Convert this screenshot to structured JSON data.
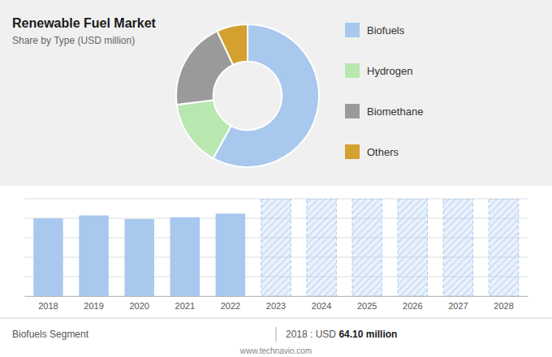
{
  "chart_data": [
    {
      "type": "pie",
      "title": "Renewable Fuel Market",
      "subtitle": "Share by Type (USD million)",
      "categories": [
        "Biofuels",
        "Hydrogen",
        "Biomethane",
        "Others"
      ],
      "values": [
        58,
        15,
        20,
        7
      ],
      "colors": [
        "#a8c8ee",
        "#b8e8b0",
        "#9a9a9a",
        "#d4a030"
      ],
      "legend": "right"
    },
    {
      "type": "bar",
      "categories": [
        "2018",
        "2019",
        "2020",
        "2021",
        "2022",
        "2023",
        "2024",
        "2025",
        "2026",
        "2027",
        "2028"
      ],
      "series": [
        {
          "color": "#a8c8ee",
          "values": [
            64.1,
            66.5,
            63.5,
            65.0,
            68.0,
            null,
            null,
            null,
            null,
            null,
            null
          ]
        },
        {
          "color": "#a8c8ee",
          "line_style": "dashed",
          "values": [
            null,
            null,
            null,
            null,
            null,
            80.24,
            80.24,
            80.24,
            80.24,
            80.24,
            80.24
          ]
        }
      ],
      "ylim": [
        0,
        80.24
      ],
      "yticks": [
        0,
        16.048,
        32.096,
        48.144,
        64.192,
        80.24
      ],
      "grid": true,
      "tick_labels": "x",
      "annotations": [
        "Biofuels Segment",
        "2018 : USD ",
        "64.10 million",
        "www.technavio.com"
      ]
    }
  ]
}
